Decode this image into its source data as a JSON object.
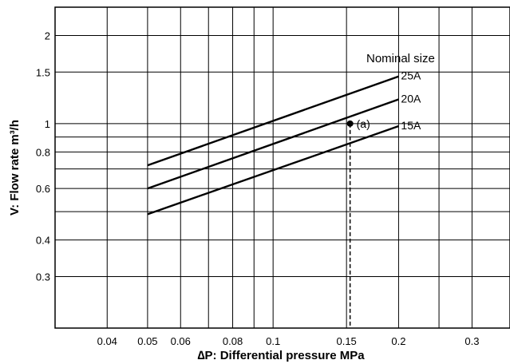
{
  "chart_data": {
    "type": "line",
    "title": "",
    "xlabel": "∆P: Differential pressure MPa",
    "ylabel": "V: Flow rate m³/h",
    "x_scale": "log",
    "y_scale": "log",
    "xlim": [
      0.03,
      0.37
    ],
    "ylim": [
      0.2,
      2.5
    ],
    "grid": true,
    "x_ticks": [
      0.04,
      0.05,
      0.06,
      0.08,
      0.1,
      0.15,
      0.2,
      0.3
    ],
    "x_tick_labels": [
      "0.04",
      "0.05",
      "0.06",
      "0.08",
      "0.1",
      "0.15",
      "0.2",
      "0.3"
    ],
    "x_grid": [
      0.04,
      0.05,
      0.06,
      0.07,
      0.08,
      0.09,
      0.1,
      0.15,
      0.2,
      0.25,
      0.3
    ],
    "y_ticks": [
      0.3,
      0.4,
      0.6,
      0.8,
      1,
      1.5,
      2
    ],
    "y_tick_labels": [
      "0.3",
      "0.4",
      "0.6",
      "0.8",
      "1",
      "1.5",
      "2"
    ],
    "y_grid": [
      0.3,
      0.4,
      0.5,
      0.6,
      0.7,
      0.8,
      0.9,
      1,
      1.5,
      2
    ],
    "legend_title": "Nominal size",
    "series": [
      {
        "name": "25A",
        "x": [
          0.05,
          0.2
        ],
        "y": [
          0.72,
          1.45
        ]
      },
      {
        "name": "20A",
        "x": [
          0.05,
          0.2
        ],
        "y": [
          0.6,
          1.21
        ]
      },
      {
        "name": "15A",
        "x": [
          0.05,
          0.2
        ],
        "y": [
          0.49,
          0.98
        ]
      }
    ],
    "annotations": [
      {
        "label": "(a)",
        "x": 0.153,
        "y": 1.0
      }
    ]
  }
}
